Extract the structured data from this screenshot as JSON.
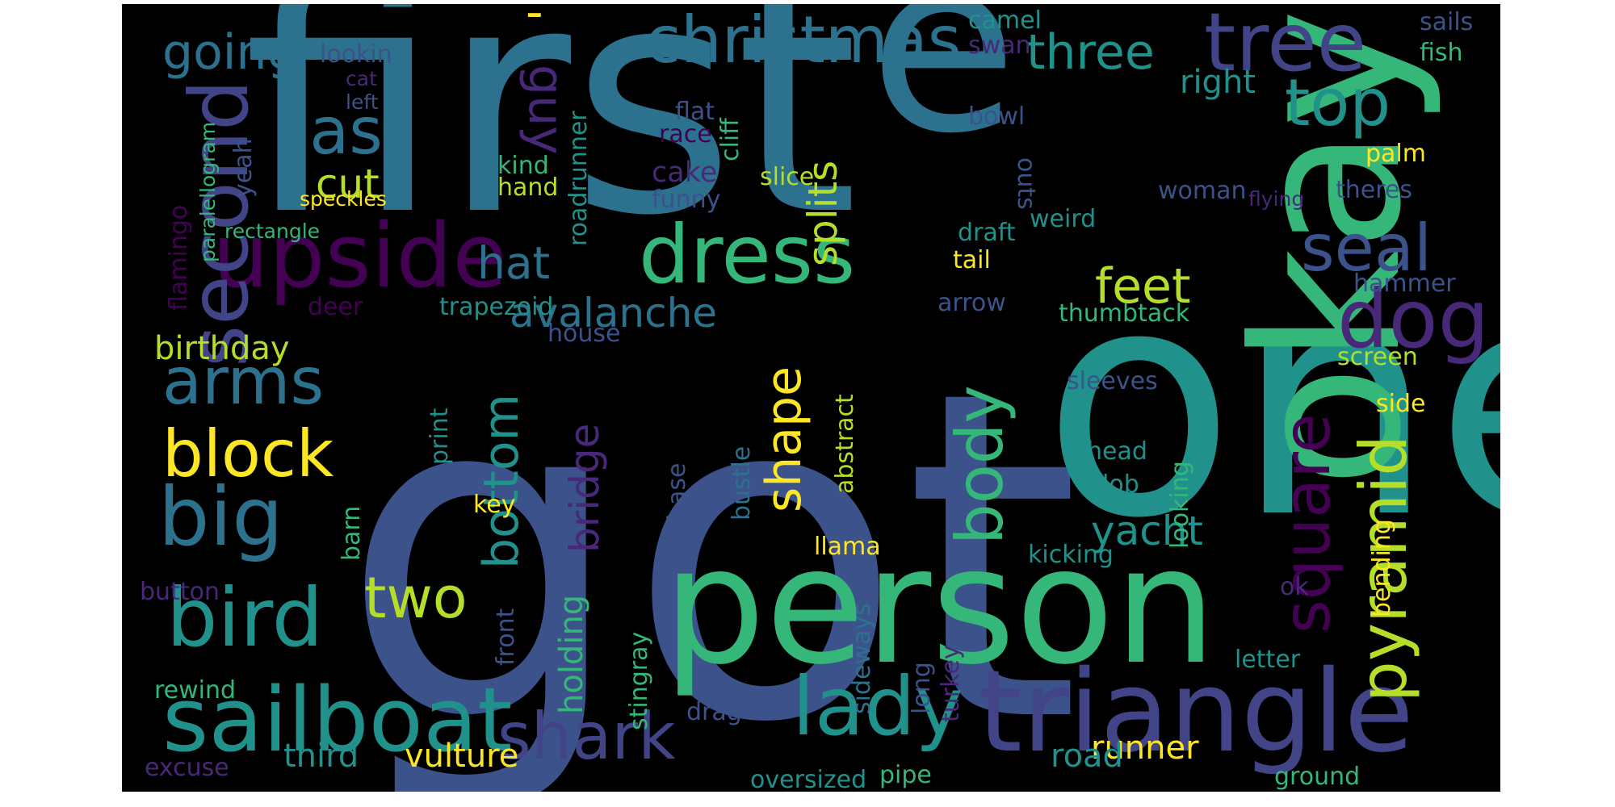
{
  "words": [
    {
      "text": "got",
      "color": "#3b528b"
    },
    {
      "text": "first",
      "color": "#2c728e"
    },
    {
      "text": "one",
      "color": "#21918c"
    },
    {
      "text": "e",
      "color": "#2c728e"
    },
    {
      "text": "okay",
      "color": "#35b779"
    },
    {
      "text": "person",
      "color": "#35b779"
    },
    {
      "text": "triangle",
      "color": "#414487"
    },
    {
      "text": "sailboat",
      "color": "#21918c"
    },
    {
      "text": "christmas",
      "color": "#2c728e"
    },
    {
      "text": "tree",
      "color": "#414487"
    },
    {
      "text": "upside",
      "color": "#440154"
    },
    {
      "text": "dress",
      "color": "#35b779"
    },
    {
      "text": "lady",
      "color": "#21918c"
    },
    {
      "text": "dog",
      "color": "#482878"
    },
    {
      "text": "second",
      "color": "#414487"
    },
    {
      "text": "big",
      "color": "#2c728e"
    },
    {
      "text": "bird",
      "color": "#21918c"
    },
    {
      "text": "shark",
      "color": "#414487"
    },
    {
      "text": "arms",
      "color": "#2c728e"
    },
    {
      "text": "block",
      "color": "#fde725"
    },
    {
      "text": "square",
      "color": "#440154"
    },
    {
      "text": "pyramid",
      "color": "#b5de2b"
    },
    {
      "text": "top",
      "color": "#21918c"
    },
    {
      "text": "seal",
      "color": "#3b528b"
    },
    {
      "text": "last",
      "color": "#2c728e"
    },
    {
      "text": "body",
      "color": "#35b779"
    },
    {
      "text": "two",
      "color": "#b5de2b"
    },
    {
      "text": "guy",
      "color": "#482878"
    },
    {
      "text": "bottom",
      "color": "#21918c"
    },
    {
      "text": "feet",
      "color": "#b5de2b"
    },
    {
      "text": "shape",
      "color": "#fde725"
    },
    {
      "text": "three",
      "color": "#21918c"
    },
    {
      "text": "going",
      "color": "#2c728e"
    },
    {
      "text": "hat",
      "color": "#2c728e"
    },
    {
      "text": "avalanche",
      "color": "#2c728e"
    },
    {
      "text": "cut",
      "color": "#b5de2b"
    },
    {
      "text": "yacht",
      "color": "#21918c"
    },
    {
      "text": "splits",
      "color": "#b5de2b"
    },
    {
      "text": "bridge",
      "color": "#482878"
    },
    {
      "text": "runner",
      "color": "#fde725"
    },
    {
      "text": "vulture",
      "color": "#fde725"
    },
    {
      "text": "third",
      "color": "#21918c"
    },
    {
      "text": "road",
      "color": "#21918c"
    },
    {
      "text": "holding",
      "color": "#35b779"
    },
    {
      "text": "birthday",
      "color": "#b5de2b"
    },
    {
      "text": "right",
      "color": "#21918c"
    },
    {
      "text": "cake",
      "color": "#482878"
    },
    {
      "text": "camel",
      "color": "#21918c"
    },
    {
      "text": "sails",
      "color": "#3b528b"
    },
    {
      "text": "lookin",
      "color": "#3b528b"
    },
    {
      "text": "swan",
      "color": "#482878"
    },
    {
      "text": "fish",
      "color": "#35b779"
    },
    {
      "text": "cat",
      "color": "#482878"
    },
    {
      "text": "left",
      "color": "#3b528b"
    },
    {
      "text": "flat",
      "color": "#3b528b"
    },
    {
      "text": "race",
      "color": "#440154"
    },
    {
      "text": "cliff",
      "color": "#35b779"
    },
    {
      "text": "bowl",
      "color": "#3b528b"
    },
    {
      "text": "paralellogram",
      "color": "#35b779"
    },
    {
      "text": "flamingo",
      "color": "#440154"
    },
    {
      "text": "yeah",
      "color": "#3b528b"
    },
    {
      "text": "speckles",
      "color": "#fde725"
    },
    {
      "text": "rectangle",
      "color": "#35b779"
    },
    {
      "text": "kind",
      "color": "#35b779"
    },
    {
      "text": "hand",
      "color": "#b5de2b"
    },
    {
      "text": "roadrunner",
      "color": "#21918c"
    },
    {
      "text": "funny",
      "color": "#3b528b"
    },
    {
      "text": "slice",
      "color": "#b5de2b"
    },
    {
      "text": "palm",
      "color": "#fde725"
    },
    {
      "text": "theres",
      "color": "#3b528b"
    },
    {
      "text": "woman",
      "color": "#3b528b"
    },
    {
      "text": "flying",
      "color": "#482878"
    },
    {
      "text": "outs",
      "color": "#3b528b"
    },
    {
      "text": "weird",
      "color": "#21918c"
    },
    {
      "text": "draft",
      "color": "#21918c"
    },
    {
      "text": "tail",
      "color": "#fde725"
    },
    {
      "text": "hammer",
      "color": "#3b528b"
    },
    {
      "text": "deer",
      "color": "#440154"
    },
    {
      "text": "trapezoid",
      "color": "#21918c"
    },
    {
      "text": "arrow",
      "color": "#3b528b"
    },
    {
      "text": "thumbtack",
      "color": "#35b779"
    },
    {
      "text": "house",
      "color": "#3b528b"
    },
    {
      "text": "screen",
      "color": "#b5de2b"
    },
    {
      "text": "sleeves",
      "color": "#3b528b"
    },
    {
      "text": "side",
      "color": "#fde725"
    },
    {
      "text": "abstract",
      "color": "#b5de2b"
    },
    {
      "text": "print",
      "color": "#21918c"
    },
    {
      "text": "head",
      "color": "#21918c"
    },
    {
      "text": "blob",
      "color": "#21918c"
    },
    {
      "text": "looking",
      "color": "#35b779"
    },
    {
      "text": "bending",
      "color": "#fde725"
    },
    {
      "text": "base",
      "color": "#3b528b"
    },
    {
      "text": "bustle",
      "color": "#2c728e"
    },
    {
      "text": "barn",
      "color": "#35b779"
    },
    {
      "text": "key",
      "color": "#fde725"
    },
    {
      "text": "llama",
      "color": "#fde725"
    },
    {
      "text": "kicking",
      "color": "#21918c"
    },
    {
      "text": "button",
      "color": "#482878"
    },
    {
      "text": "front",
      "color": "#3b528b"
    },
    {
      "text": "sideways",
      "color": "#2c728e"
    },
    {
      "text": "ok",
      "color": "#482878"
    },
    {
      "text": "long",
      "color": "#3b528b"
    },
    {
      "text": "turkey",
      "color": "#482878"
    },
    {
      "text": "letter",
      "color": "#21918c"
    },
    {
      "text": "rewind",
      "color": "#35b779"
    },
    {
      "text": "stingray",
      "color": "#35b779"
    },
    {
      "text": "drag",
      "color": "#3b528b"
    },
    {
      "text": "excuse",
      "color": "#482878"
    },
    {
      "text": "oversized",
      "color": "#21918c"
    },
    {
      "text": "pipe",
      "color": "#35b779"
    },
    {
      "text": "ground",
      "color": "#35b779"
    },
    {
      "text": "-",
      "color": "#fde725"
    }
  ]
}
